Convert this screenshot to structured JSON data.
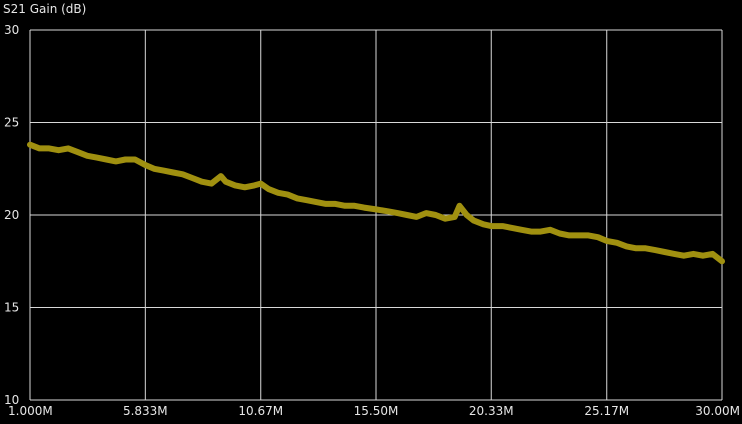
{
  "chart_data": {
    "type": "line",
    "title": "S21 Gain (dB)",
    "xlabel": "",
    "ylabel": "",
    "xlim": [
      1000000,
      30000000
    ],
    "ylim": [
      10,
      30
    ],
    "x_ticks": [
      1000000,
      5833000,
      10670000,
      15500000,
      20330000,
      25170000,
      30000000
    ],
    "x_tick_labels": [
      "1.000M",
      "5.833M",
      "10.67M",
      "15.50M",
      "20.33M",
      "25.17M",
      "30.00M"
    ],
    "y_ticks": [
      10,
      15,
      20,
      25,
      30
    ],
    "y_tick_labels": [
      "10",
      "15",
      "20",
      "25",
      "30"
    ],
    "grid": true,
    "colors": {
      "background": "#000000",
      "grid": "#d9d9d9",
      "trace": "#a09010"
    },
    "series": [
      {
        "x": [
          1000000,
          1400000,
          1800000,
          2200000,
          2600000,
          3000000,
          3400000,
          3800000,
          4200000,
          4600000,
          5000000,
          5400000,
          5833000,
          6200000,
          6600000,
          7000000,
          7400000,
          7800000,
          8200000,
          8600000,
          9000000,
          9200000,
          9600000,
          10000000,
          10400000,
          10670000,
          11000000,
          11400000,
          11800000,
          12200000,
          12600000,
          13000000,
          13400000,
          13800000,
          14200000,
          14600000,
          15000000,
          15500000,
          16000000,
          16400000,
          16800000,
          17200000,
          17600000,
          18000000,
          18400000,
          18800000,
          19000000,
          19300000,
          19600000,
          20000000,
          20330000,
          20800000,
          21200000,
          21600000,
          22000000,
          22400000,
          22800000,
          23200000,
          23600000,
          24000000,
          24400000,
          24800000,
          25170000,
          25600000,
          26000000,
          26400000,
          26800000,
          27200000,
          27600000,
          28000000,
          28400000,
          28800000,
          29200000,
          29600000,
          30000000
        ],
        "values": [
          23.8,
          23.6,
          23.6,
          23.5,
          23.6,
          23.4,
          23.2,
          23.1,
          23.0,
          22.9,
          23.0,
          23.0,
          22.7,
          22.5,
          22.4,
          22.3,
          22.2,
          22.0,
          21.8,
          21.7,
          22.1,
          21.8,
          21.6,
          21.5,
          21.6,
          21.7,
          21.4,
          21.2,
          21.1,
          20.9,
          20.8,
          20.7,
          20.6,
          20.6,
          20.5,
          20.5,
          20.4,
          20.3,
          20.2,
          20.1,
          20.0,
          19.9,
          20.1,
          20.0,
          19.8,
          19.9,
          20.5,
          20.0,
          19.7,
          19.5,
          19.4,
          19.4,
          19.3,
          19.2,
          19.1,
          19.1,
          19.2,
          19.0,
          18.9,
          18.9,
          18.9,
          18.8,
          18.6,
          18.5,
          18.3,
          18.2,
          18.2,
          18.1,
          18.0,
          17.9,
          17.8,
          17.9,
          17.8,
          17.9,
          17.5
        ]
      }
    ]
  }
}
